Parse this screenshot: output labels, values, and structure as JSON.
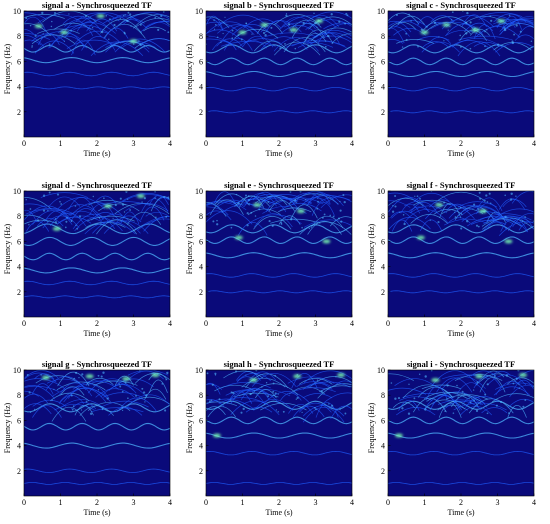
{
  "chart_data": [
    {
      "type": "heatmap",
      "title": "signal a - Synchrosqueezed TF",
      "xlabel": "Time (s)",
      "ylabel": "Frequency (Hz)",
      "xlim": [
        0,
        4
      ],
      "ylim": [
        0,
        10
      ],
      "xticks": [
        "0",
        "1",
        "2",
        "3",
        "4"
      ],
      "yticks": [
        "2",
        "4",
        "6",
        "8",
        "10"
      ],
      "ridges_hz": [
        3.9,
        5.0,
        6.1,
        7.0
      ],
      "dense_band_hz": [
        7.5,
        10
      ],
      "hot_spots": [
        [
          0.4,
          8.8
        ],
        [
          1.1,
          8.3
        ],
        [
          2.1,
          9.6
        ],
        [
          3.0,
          7.6
        ]
      ]
    },
    {
      "type": "heatmap",
      "title": "signal b - Synchrosqueezed TF",
      "xlabel": "Time (s)",
      "ylabel": "Frequency (Hz)",
      "xlim": [
        0,
        4
      ],
      "ylim": [
        0,
        10
      ],
      "xticks": [
        "0",
        "1",
        "2",
        "3",
        "4"
      ],
      "yticks": [
        "2",
        "4",
        "6",
        "8",
        "10"
      ],
      "ridges_hz": [
        2.0,
        3.8,
        5.0,
        6.0,
        7.0
      ],
      "dense_band_hz": [
        7.5,
        10
      ],
      "hot_spots": [
        [
          1.0,
          8.3
        ],
        [
          1.6,
          8.9
        ],
        [
          2.4,
          8.5
        ],
        [
          3.1,
          9.2
        ]
      ]
    },
    {
      "type": "heatmap",
      "title": "signal c - Synchrosqueezed TF",
      "xlabel": "Time (s)",
      "ylabel": "Frequency (Hz)",
      "xlim": [
        0,
        4
      ],
      "ylim": [
        0,
        10
      ],
      "xticks": [
        "0",
        "1",
        "2",
        "3",
        "4"
      ],
      "yticks": [
        "2",
        "4",
        "6",
        "8",
        "10"
      ],
      "ridges_hz": [
        2.0,
        3.8,
        5.0,
        6.0,
        7.0
      ],
      "dense_band_hz": [
        7.5,
        10
      ],
      "hot_spots": [
        [
          1.0,
          8.3
        ],
        [
          1.6,
          8.9
        ],
        [
          2.4,
          8.5
        ],
        [
          3.1,
          9.2
        ]
      ]
    },
    {
      "type": "heatmap",
      "title": "signal d - Synchrosqueezed TF",
      "xlabel": "Time (s)",
      "ylabel": "Frequency (Hz)",
      "xlim": [
        0,
        4
      ],
      "ylim": [
        0,
        10
      ],
      "xticks": [
        "0",
        "1",
        "2",
        "3",
        "4"
      ],
      "yticks": [
        "2",
        "4",
        "6",
        "8",
        "10"
      ],
      "ridges_hz": [
        1.6,
        2.7,
        3.7,
        4.8,
        6.0,
        7.0
      ],
      "dense_band_hz": [
        7.5,
        10
      ],
      "hot_spots": [
        [
          0.9,
          7.0
        ],
        [
          2.3,
          8.8
        ],
        [
          3.2,
          9.6
        ]
      ]
    },
    {
      "type": "heatmap",
      "title": "signal e - Synchrosqueezed TF",
      "xlabel": "Time (s)",
      "ylabel": "Frequency (Hz)",
      "xlim": [
        0,
        4
      ],
      "ylim": [
        0,
        10
      ],
      "xticks": [
        "0",
        "1",
        "2",
        "3",
        "4"
      ],
      "yticks": [
        "2",
        "4",
        "6",
        "8",
        "10"
      ],
      "ridges_hz": [
        2.0,
        3.3,
        4.9,
        6.1,
        7.0
      ],
      "dense_band_hz": [
        7.5,
        10
      ],
      "hot_spots": [
        [
          0.9,
          6.3
        ],
        [
          1.4,
          8.9
        ],
        [
          2.6,
          8.4
        ],
        [
          3.3,
          6.0
        ]
      ]
    },
    {
      "type": "heatmap",
      "title": "signal f - Synchrosqueezed TF",
      "xlabel": "Time (s)",
      "ylabel": "Frequency (Hz)",
      "xlim": [
        0,
        4
      ],
      "ylim": [
        0,
        10
      ],
      "xticks": [
        "0",
        "1",
        "2",
        "3",
        "4"
      ],
      "yticks": [
        "2",
        "4",
        "6",
        "8",
        "10"
      ],
      "ridges_hz": [
        2.0,
        3.3,
        4.9,
        6.1,
        7.0
      ],
      "dense_band_hz": [
        7.5,
        10
      ],
      "hot_spots": [
        [
          0.9,
          6.3
        ],
        [
          1.4,
          8.9
        ],
        [
          2.6,
          8.4
        ],
        [
          3.3,
          6.0
        ]
      ]
    },
    {
      "type": "heatmap",
      "title": "signal g - Synchrosqueezed TF",
      "xlabel": "Time (s)",
      "ylabel": "Frequency (Hz)",
      "xlim": [
        0,
        4
      ],
      "ylim": [
        0,
        10
      ],
      "xticks": [
        "0",
        "1",
        "2",
        "3",
        "4"
      ],
      "yticks": [
        "2",
        "4",
        "6",
        "8",
        "10"
      ],
      "ridges_hz": [
        1.0,
        2.0,
        4.0,
        5.5,
        7.0
      ],
      "dense_band_hz": [
        7.0,
        10
      ],
      "hot_spots": [
        [
          0.6,
          9.4
        ],
        [
          1.8,
          9.5
        ],
        [
          2.8,
          9.3
        ],
        [
          3.6,
          9.6
        ]
      ]
    },
    {
      "type": "heatmap",
      "title": "signal h - Synchrosqueezed TF",
      "xlabel": "Time (s)",
      "ylabel": "Frequency (Hz)",
      "xlim": [
        0,
        4
      ],
      "ylim": [
        0,
        10
      ],
      "xticks": [
        "0",
        "1",
        "2",
        "3",
        "4"
      ],
      "yticks": [
        "2",
        "4",
        "6",
        "8",
        "10"
      ],
      "ridges_hz": [
        1.0,
        3.4,
        4.8,
        6.0,
        7.2
      ],
      "dense_band_hz": [
        7.0,
        10
      ],
      "hot_spots": [
        [
          0.3,
          4.8
        ],
        [
          1.3,
          9.2
        ],
        [
          2.5,
          9.5
        ],
        [
          3.7,
          9.6
        ]
      ]
    },
    {
      "type": "heatmap",
      "title": "signal i - Synchrosqueezed TF",
      "xlabel": "Time (s)",
      "ylabel": "Frequency (Hz)",
      "xlim": [
        0,
        4
      ],
      "ylim": [
        0,
        10
      ],
      "xticks": [
        "0",
        "1",
        "2",
        "3",
        "4"
      ],
      "yticks": [
        "2",
        "4",
        "6",
        "8",
        "10"
      ],
      "ridges_hz": [
        1.0,
        3.4,
        4.8,
        6.0,
        7.2
      ],
      "dense_band_hz": [
        7.0,
        10
      ],
      "hot_spots": [
        [
          0.3,
          4.8
        ],
        [
          1.3,
          9.2
        ],
        [
          2.5,
          9.5
        ],
        [
          3.7,
          9.6
        ]
      ]
    }
  ],
  "colors": {
    "background": "#0a0a7a",
    "ridge": "#1f5dff",
    "ridge_strong": "#4fb7ff",
    "hot": "#7dffb0",
    "axis": "#000000"
  }
}
